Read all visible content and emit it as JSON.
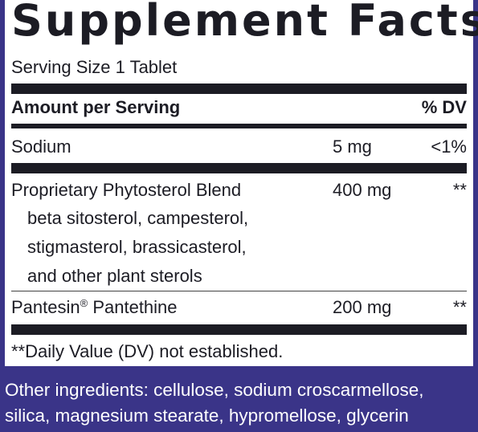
{
  "title": "Supplement Facts",
  "serving_size": "Serving Size 1 Tablet",
  "header": {
    "amount": "Amount per Serving",
    "dv": "% DV"
  },
  "rows": [
    {
      "name": "Sodium",
      "amount": "5 mg",
      "dv": "<1%"
    },
    {
      "name": "Proprietary Phytosterol Blend",
      "amount": "400 mg",
      "dv": "**",
      "sub": [
        "beta sitosterol, campesterol,",
        "stigmasterol, brassicasterol,",
        "and other plant sterols"
      ]
    },
    {
      "name": "Pantesin",
      "name_mark": "®",
      "name_rest": " Pantethine",
      "amount": "200 mg",
      "dv": "**"
    }
  ],
  "footnote": "**Daily Value (DV) not established.",
  "other_ingredients": [
    "Other ingredients: cellulose, sodium croscarmellose,",
    "silica, magnesium stearate, hypromellose, glycerin"
  ],
  "colors": {
    "background": "#3a3488",
    "panel": "#ffffff",
    "text": "#1c1c24"
  }
}
